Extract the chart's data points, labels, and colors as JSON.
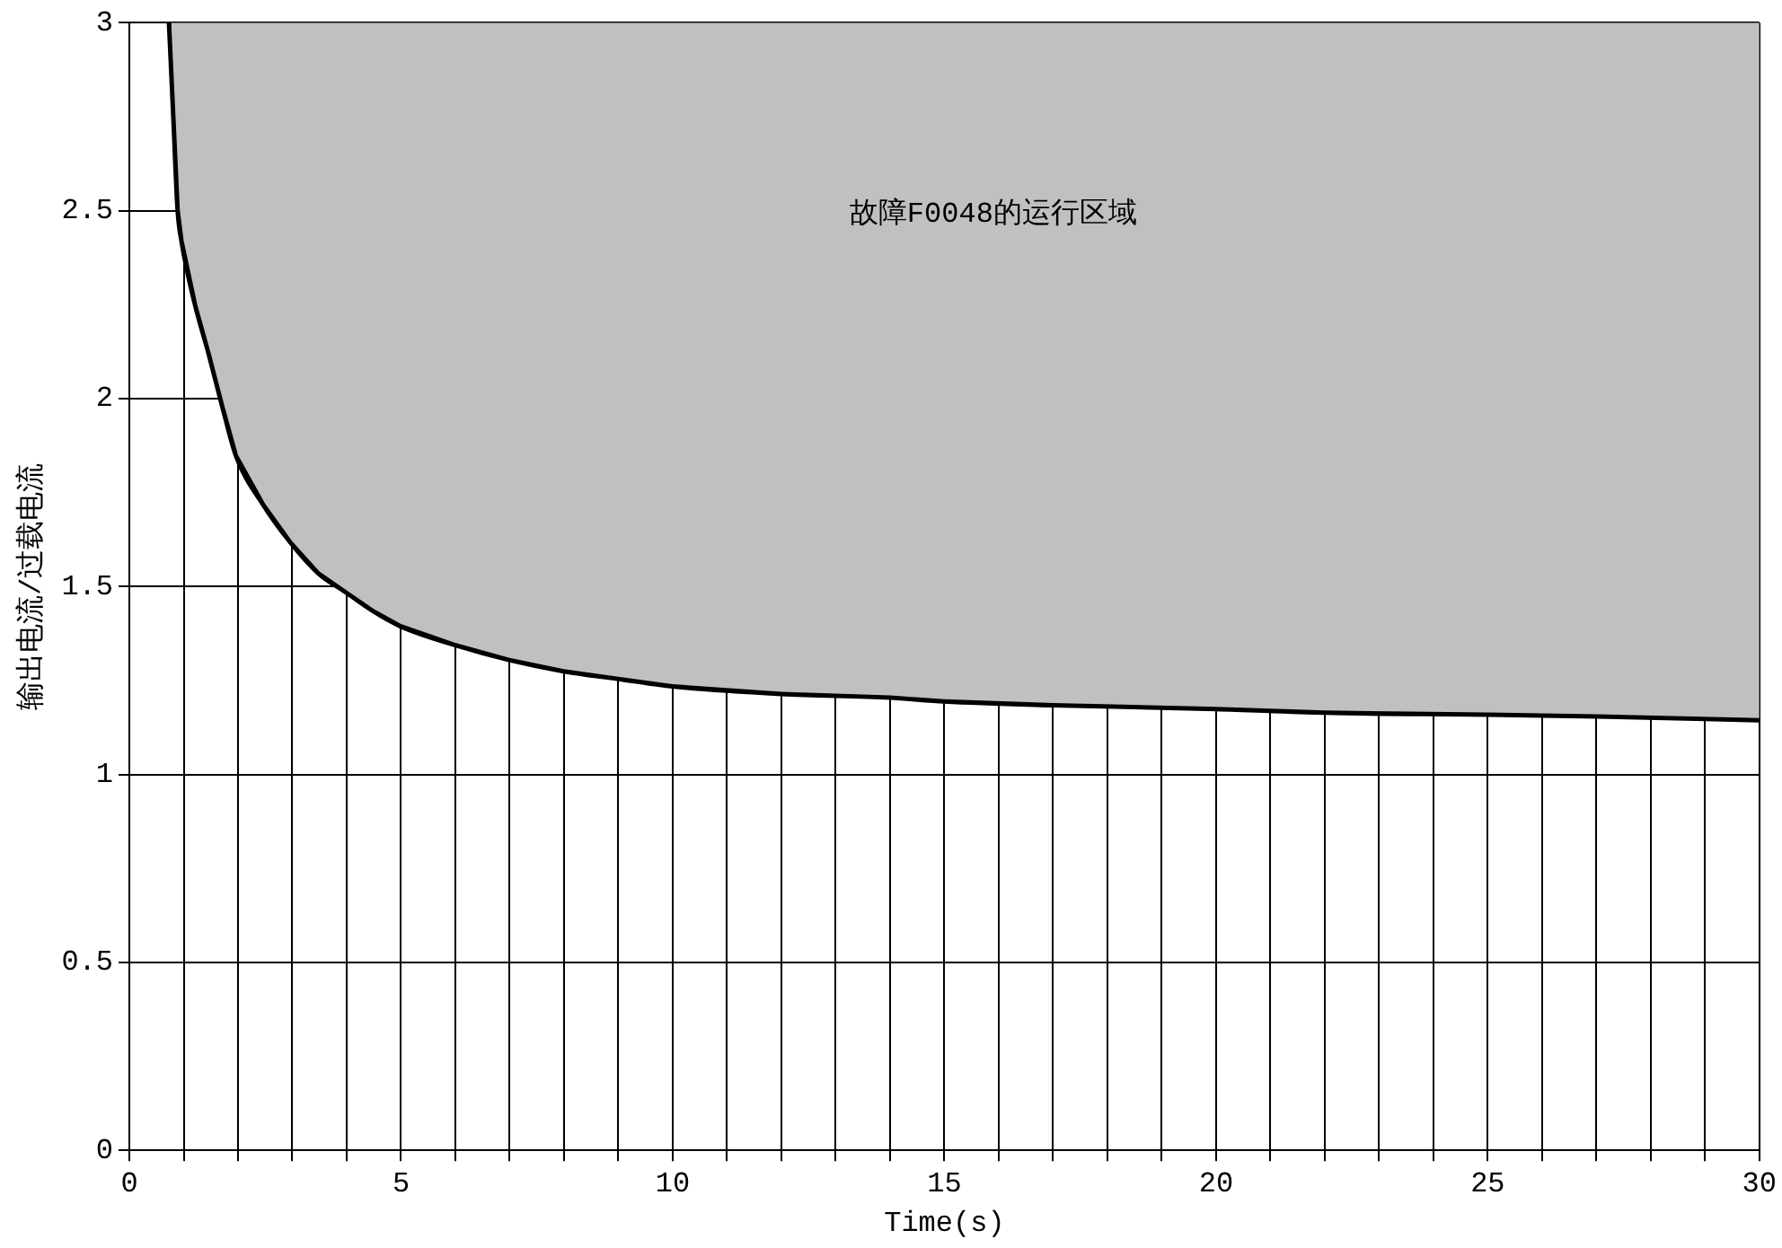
{
  "chart_data": {
    "type": "line",
    "xlabel": "Time(s)",
    "ylabel": "输出电流/过载电流",
    "annotations": [
      "故障F0048的运行区域"
    ],
    "x": [
      0.77,
      0.85,
      0.93,
      1,
      1.25,
      1.5,
      1.75,
      2,
      2.5,
      3,
      3.5,
      4,
      4.5,
      5,
      6,
      7,
      8,
      9,
      10,
      12,
      14,
      15,
      17,
      20,
      22,
      25,
      27,
      30
    ],
    "series": [
      {
        "color": "#000000",
        "values": [
          3,
          2.75,
          2.5,
          2.42,
          2.25,
          2.12,
          1.98,
          1.85,
          1.72,
          1.62,
          1.54,
          1.49,
          1.44,
          1.4,
          1.35,
          1.31,
          1.28,
          1.26,
          1.24,
          1.22,
          1.21,
          1.2,
          1.19,
          1.18,
          1.17,
          1.165,
          1.16,
          1.15
        ],
        "lower": [
          3,
          2.75,
          2.5,
          2.42,
          2.25,
          2.12,
          1.98,
          1.85,
          1.72,
          1.62,
          1.54,
          1.49,
          1.44,
          1.4,
          1.35,
          1.31,
          1.28,
          1.26,
          1.24,
          1.22,
          1.21,
          1.2,
          1.19,
          1.18,
          1.17,
          1.165,
          1.16,
          1.15
        ],
        "upper": [
          3,
          3,
          3,
          3,
          3,
          3,
          3,
          3,
          3,
          3,
          3,
          3,
          3,
          3,
          3,
          3,
          3,
          3,
          3,
          3,
          3,
          3,
          3,
          3,
          3,
          3,
          3,
          3
        ]
      }
    ],
    "xlim": [
      0,
      30
    ],
    "xticks": [
      0,
      {
        "value": 1,
        "label": null
      },
      {
        "value": 2,
        "label": null
      },
      {
        "value": 3,
        "label": null
      },
      {
        "value": 4,
        "label": null
      },
      5,
      {
        "value": 6,
        "label": null
      },
      {
        "value": 7,
        "label": null
      },
      {
        "value": 8,
        "label": null
      },
      {
        "value": 9,
        "label": null
      },
      10,
      {
        "value": 11,
        "label": null
      },
      {
        "value": 12,
        "label": null
      },
      {
        "value": 13,
        "label": null
      },
      {
        "value": 14,
        "label": null
      },
      15,
      {
        "value": 16,
        "label": null
      },
      {
        "value": 17,
        "label": null
      },
      {
        "value": 18,
        "label": null
      },
      {
        "value": 19,
        "label": null
      },
      20,
      {
        "value": 21,
        "label": null
      },
      {
        "value": 22,
        "label": null
      },
      {
        "value": 23,
        "label": null
      },
      {
        "value": 24,
        "label": null
      },
      25,
      {
        "value": 26,
        "label": null
      },
      {
        "value": 27,
        "label": null
      },
      {
        "value": 28,
        "label": null
      },
      {
        "value": 29,
        "label": null
      },
      30
    ],
    "ylim": [
      0,
      3
    ],
    "yticks": [
      0,
      0.5,
      1,
      1.5,
      2,
      2.5,
      3
    ],
    "grid": true,
    "marker": "none",
    "line_style": "solid"
  }
}
